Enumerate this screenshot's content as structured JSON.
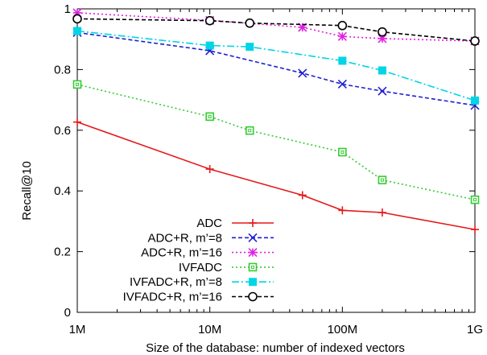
{
  "chart_data": {
    "type": "line",
    "xlabel": "Size of the database: number of indexed vectors",
    "ylabel": "Recall@10",
    "x_scale": "log",
    "xlim": [
      1000000,
      1000000000
    ],
    "ylim": [
      0,
      1
    ],
    "x_ticks": [
      {
        "value": 1000000,
        "label": "1M"
      },
      {
        "value": 10000000,
        "label": "10M"
      },
      {
        "value": 100000000,
        "label": "100M"
      },
      {
        "value": 1000000000,
        "label": "1G"
      }
    ],
    "y_ticks": [
      {
        "value": 0,
        "label": "0"
      },
      {
        "value": 0.2,
        "label": "0.2"
      },
      {
        "value": 0.4,
        "label": "0.4"
      },
      {
        "value": 0.6,
        "label": "0.6"
      },
      {
        "value": 0.8,
        "label": "0.8"
      },
      {
        "value": 1,
        "label": "1"
      }
    ],
    "grid": false,
    "legend_position": "bottom-center",
    "series": [
      {
        "name": "ADC",
        "color": "#e41a1c",
        "dash": "solid",
        "marker": "plus",
        "x": [
          1000000,
          10000000,
          50000000,
          100000000,
          200000000,
          1000000000
        ],
        "y": [
          0.627,
          0.472,
          0.386,
          0.336,
          0.329,
          0.273
        ]
      },
      {
        "name": "ADC+R, m’=8",
        "color": "#1f1fd0",
        "dash": "dashed",
        "marker": "x",
        "x": [
          1000000,
          10000000,
          50000000,
          100000000,
          200000000,
          1000000000
        ],
        "y": [
          0.922,
          0.862,
          0.788,
          0.752,
          0.729,
          0.682
        ]
      },
      {
        "name": "ADC+R, m’=16",
        "color": "#e020e0",
        "dash": "dotted",
        "marker": "star",
        "x": [
          1000000,
          10000000,
          50000000,
          100000000,
          200000000,
          1000000000
        ],
        "y": [
          0.987,
          0.962,
          0.939,
          0.909,
          0.902,
          0.894
        ]
      },
      {
        "name": "IVFADC",
        "color": "#33cc33",
        "dash": "dotted",
        "marker": "square-open",
        "x": [
          1000000,
          10000000,
          20000000,
          100000000,
          200000000,
          1000000000
        ],
        "y": [
          0.751,
          0.645,
          0.599,
          0.528,
          0.436,
          0.371
        ]
      },
      {
        "name": "IVFADC+R, m’=8",
        "color": "#00d5e6",
        "dash": "dashdot",
        "marker": "square-filled",
        "x": [
          1000000,
          10000000,
          20000000,
          100000000,
          200000000,
          1000000000
        ],
        "y": [
          0.927,
          0.879,
          0.875,
          0.829,
          0.797,
          0.698
        ]
      },
      {
        "name": "IVFADC+R, m’=16",
        "color": "#000000",
        "dash": "dashed",
        "marker": "circle-open",
        "x": [
          1000000,
          10000000,
          20000000,
          100000000,
          200000000,
          1000000000
        ],
        "y": [
          0.967,
          0.961,
          0.953,
          0.945,
          0.924,
          0.894
        ]
      }
    ]
  }
}
